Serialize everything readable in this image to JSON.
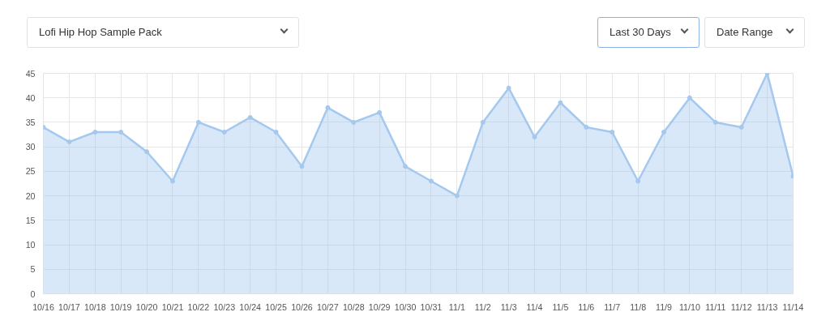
{
  "chart_data": {
    "type": "area",
    "annotations": [
      "Lofi Hip Hop Sample Pack",
      "Last 30 Days",
      "Date Range"
    ],
    "categories": [
      "10/16",
      "10/17",
      "10/18",
      "10/19",
      "10/20",
      "10/21",
      "10/22",
      "10/23",
      "10/24",
      "10/25",
      "10/26",
      "10/27",
      "10/28",
      "10/29",
      "10/30",
      "10/31",
      "11/1",
      "11/2",
      "11/3",
      "11/4",
      "11/5",
      "11/6",
      "11/7",
      "11/8",
      "11/9",
      "11/10",
      "11/11",
      "11/12",
      "11/13",
      "11/14"
    ],
    "series": [
      {
        "color": "#a4c8ee",
        "values": [
          34,
          31,
          33,
          33,
          29,
          23,
          35,
          33,
          36,
          33,
          26,
          38,
          35,
          37,
          26,
          23,
          20,
          35,
          42,
          32,
          39,
          34,
          33,
          23,
          33,
          40,
          35,
          34,
          45,
          24
        ]
      }
    ],
    "ylim": [
      0,
      45
    ],
    "yticks": [
      0,
      5,
      10,
      15,
      20,
      25,
      30,
      35,
      40,
      45
    ],
    "grid": true,
    "marker": "circle",
    "line_style": "solid"
  }
}
